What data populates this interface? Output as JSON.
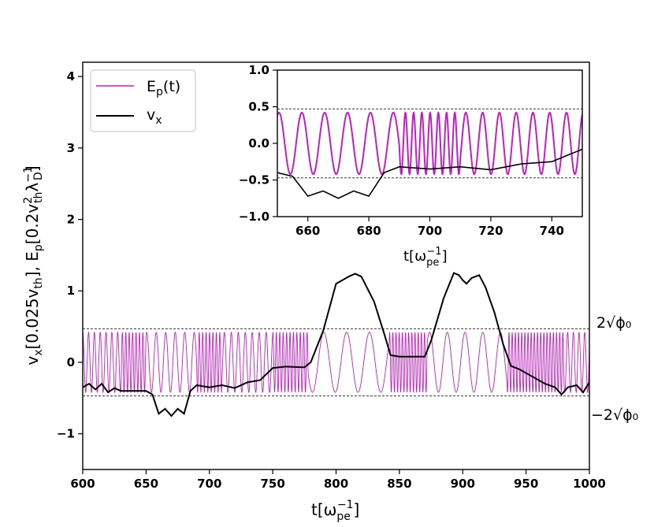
{
  "colors": {
    "ep": "#c020c0",
    "vx": "#000000",
    "axes": "#000000",
    "ref": "#333333"
  },
  "chart_data": [
    {
      "name": "main",
      "type": "line",
      "xlabel_base": "t[ω",
      "xlabel_sub": "pe",
      "xlabel_sup": "−1",
      "xlabel_close": "]",
      "ylabel": "v_x[0.025v_th], E_p[0.2v_th^2 λ_D^-1]",
      "ylabel_parts": {
        "v": "v",
        "x": "x",
        "bracket1": "[0.025v",
        "th1": "th",
        "rest": "], E",
        "p": "p",
        "bracket2": "[0.2v",
        "sup2": "2",
        "th2": "th",
        "lambda": "λ",
        "sup_neg1": "−1",
        "D": "D",
        "close": "]"
      },
      "xlim": [
        600,
        1000
      ],
      "ylim": [
        -1.5,
        4.2
      ],
      "xticks": [
        "600",
        "650",
        "700",
        "750",
        "800",
        "850",
        "900",
        "950",
        "1000"
      ],
      "xtick_values": [
        600,
        650,
        700,
        750,
        800,
        850,
        900,
        950,
        1000
      ],
      "yticks": [
        "−1",
        "0",
        "1",
        "2",
        "3",
        "4"
      ],
      "ytick_values": [
        -1,
        0,
        1,
        2,
        3,
        4
      ],
      "reference_lines": [
        0.47,
        -0.47
      ],
      "annotations": {
        "upper": "2√ϕ₀",
        "lower": "−2√ϕ₀"
      },
      "legend": {
        "position": "upper-left",
        "entries": [
          {
            "label_base": "E",
            "label_sub": "p",
            "label_tail": "(t)",
            "series": "Ep"
          },
          {
            "label_base": "v",
            "label_sub": "x",
            "label_tail": "",
            "series": "vx"
          }
        ]
      },
      "series": [
        {
          "name": "Ep",
          "amplitude": 0.42,
          "segments": [
            {
              "from": 600,
              "to": 630,
              "period": 4.6
            },
            {
              "from": 630,
              "to": 650,
              "period": 2.7
            },
            {
              "from": 650,
              "to": 690,
              "period": 7.5
            },
            {
              "from": 690,
              "to": 710,
              "period": 2.7
            },
            {
              "from": 710,
              "to": 750,
              "period": 5.5
            },
            {
              "from": 750,
              "to": 778,
              "period": 2.7
            },
            {
              "from": 778,
              "to": 842,
              "period": 18.0
            },
            {
              "from": 842,
              "to": 872,
              "period": 2.5
            },
            {
              "from": 872,
              "to": 935,
              "period": 14.0
            },
            {
              "from": 935,
              "to": 980,
              "period": 2.5
            },
            {
              "from": 980,
              "to": 1000,
              "period": 4.5
            }
          ]
        },
        {
          "name": "vx",
          "points": [
            [
              600,
              -0.35
            ],
            [
              605,
              -0.3
            ],
            [
              610,
              -0.38
            ],
            [
              615,
              -0.3
            ],
            [
              620,
              -0.42
            ],
            [
              625,
              -0.36
            ],
            [
              630,
              -0.4
            ],
            [
              650,
              -0.4
            ],
            [
              655,
              -0.45
            ],
            [
              660,
              -0.72
            ],
            [
              665,
              -0.65
            ],
            [
              670,
              -0.75
            ],
            [
              675,
              -0.65
            ],
            [
              680,
              -0.72
            ],
            [
              685,
              -0.4
            ],
            [
              690,
              -0.32
            ],
            [
              700,
              -0.35
            ],
            [
              710,
              -0.32
            ],
            [
              720,
              -0.36
            ],
            [
              730,
              -0.28
            ],
            [
              740,
              -0.25
            ],
            [
              750,
              -0.08
            ],
            [
              760,
              -0.06
            ],
            [
              775,
              -0.07
            ],
            [
              780,
              0.0
            ],
            [
              790,
              0.45
            ],
            [
              800,
              1.1
            ],
            [
              810,
              1.2
            ],
            [
              815,
              1.24
            ],
            [
              820,
              1.2
            ],
            [
              830,
              0.85
            ],
            [
              838,
              0.4
            ],
            [
              843,
              0.1
            ],
            [
              850,
              0.08
            ],
            [
              870,
              0.08
            ],
            [
              875,
              0.3
            ],
            [
              885,
              0.9
            ],
            [
              893,
              1.25
            ],
            [
              897,
              1.22
            ],
            [
              900,
              1.15
            ],
            [
              903,
              1.1
            ],
            [
              907,
              1.18
            ],
            [
              913,
              1.22
            ],
            [
              918,
              1.05
            ],
            [
              925,
              0.7
            ],
            [
              932,
              0.25
            ],
            [
              938,
              -0.05
            ],
            [
              945,
              -0.1
            ],
            [
              955,
              -0.2
            ],
            [
              965,
              -0.3
            ],
            [
              973,
              -0.35
            ],
            [
              978,
              -0.45
            ],
            [
              983,
              -0.35
            ],
            [
              990,
              -0.32
            ],
            [
              995,
              -0.42
            ],
            [
              1000,
              -0.28
            ]
          ]
        }
      ]
    },
    {
      "name": "inset",
      "type": "line",
      "xlabel_base": "t[ω",
      "xlabel_sub": "pe",
      "xlabel_sup": "−1",
      "xlabel_close": "]",
      "xlim": [
        650,
        750
      ],
      "ylim": [
        -1.0,
        1.0
      ],
      "xticks": [
        "660",
        "680",
        "700",
        "720",
        "740"
      ],
      "xtick_values": [
        660,
        680,
        700,
        720,
        740
      ],
      "yticks": [
        "−1.0",
        "−0.5",
        "0.0",
        "0.5",
        "1.0"
      ],
      "ytick_values": [
        -1.0,
        -0.5,
        0.0,
        0.5,
        1.0
      ],
      "reference_lines": [
        0.47,
        -0.47
      ]
    }
  ]
}
